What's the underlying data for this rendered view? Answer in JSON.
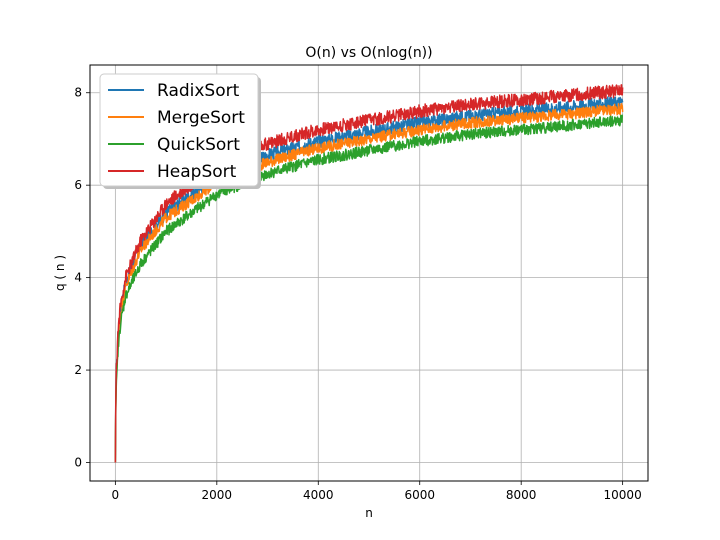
{
  "chart_data": {
    "type": "line",
    "title": "O(n) vs O(nlog(n))",
    "xlabel": "n",
    "ylabel": "q ( n )",
    "xlim": [
      -500,
      10500
    ],
    "ylim": [
      -0.4,
      8.6
    ],
    "xticks": [
      0,
      2000,
      4000,
      6000,
      8000,
      10000
    ],
    "yticks": [
      0,
      2,
      4,
      6,
      8
    ],
    "grid": true,
    "legend_position": "upper left",
    "series": [
      {
        "name": "RadixSort",
        "color": "#1f77b4",
        "x": [
          0,
          10,
          50,
          100,
          200,
          500,
          1000,
          2000,
          3000,
          4000,
          5000,
          6000,
          7000,
          8000,
          9000,
          10000
        ],
        "y": [
          0,
          1.6,
          2.7,
          3.3,
          3.9,
          4.7,
          5.4,
          6.2,
          6.65,
          6.95,
          7.15,
          7.35,
          7.5,
          7.6,
          7.7,
          7.8
        ]
      },
      {
        "name": "MergeSort",
        "color": "#ff7f0e",
        "x": [
          0,
          10,
          50,
          100,
          200,
          500,
          1000,
          2000,
          3000,
          4000,
          5000,
          6000,
          7000,
          8000,
          9000,
          10000
        ],
        "y": [
          0,
          1.5,
          2.6,
          3.2,
          3.8,
          4.6,
          5.3,
          6.05,
          6.5,
          6.8,
          7.0,
          7.2,
          7.35,
          7.45,
          7.55,
          7.65
        ]
      },
      {
        "name": "QuickSort",
        "color": "#2ca02c",
        "x": [
          0,
          10,
          50,
          100,
          200,
          500,
          1000,
          2000,
          3000,
          4000,
          5000,
          6000,
          7000,
          8000,
          9000,
          10000
        ],
        "y": [
          0,
          1.4,
          2.4,
          3.0,
          3.6,
          4.3,
          5.0,
          5.8,
          6.25,
          6.55,
          6.75,
          6.95,
          7.1,
          7.2,
          7.3,
          7.4
        ]
      },
      {
        "name": "HeapSort",
        "color": "#d62728",
        "x": [
          0,
          10,
          50,
          100,
          200,
          500,
          1000,
          2000,
          3000,
          4000,
          5000,
          6000,
          7000,
          8000,
          9000,
          10000
        ],
        "y": [
          0,
          1.7,
          2.8,
          3.4,
          4.0,
          4.8,
          5.6,
          6.45,
          6.9,
          7.2,
          7.4,
          7.6,
          7.75,
          7.85,
          7.95,
          8.05
        ]
      }
    ]
  }
}
